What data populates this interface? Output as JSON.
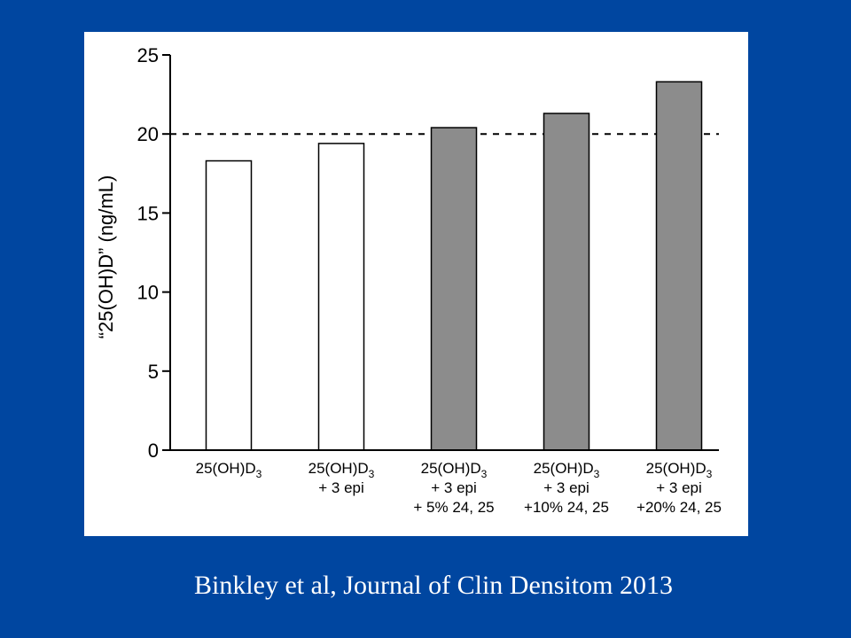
{
  "citation": "Binkley et al, Journal of Clin Densitom 2013",
  "colors": {
    "slide_background": "#0046a0",
    "panel_background": "#ffffff",
    "bar_open_fill": "#ffffff",
    "bar_filled_fill": "#8c8c8c",
    "stroke": "#000000",
    "citation_text": "#ffffff"
  },
  "chart_data": {
    "type": "bar",
    "title": "",
    "ylabel": "“25(OH)D” (ng/mL)",
    "xlabel": "",
    "ylim": [
      0,
      25
    ],
    "yticks": [
      0,
      5,
      10,
      15,
      20,
      25
    ],
    "grid": false,
    "legend": "none",
    "reference_line": {
      "value": 20,
      "style": "dashed"
    },
    "categories": [
      {
        "lines": [
          {
            "base": "25(OH)D",
            "sub": "3"
          }
        ],
        "fill": "open"
      },
      {
        "lines": [
          {
            "base": "25(OH)D",
            "sub": "3"
          },
          {
            "base": "+ 3 epi"
          }
        ],
        "fill": "open"
      },
      {
        "lines": [
          {
            "base": "25(OH)D",
            "sub": "3"
          },
          {
            "base": "+ 3 epi"
          },
          {
            "base": "+ 5% 24, 25"
          }
        ],
        "fill": "filled"
      },
      {
        "lines": [
          {
            "base": "25(OH)D",
            "sub": "3"
          },
          {
            "base": "+ 3 epi"
          },
          {
            "base": "+10% 24, 25"
          }
        ],
        "fill": "filled"
      },
      {
        "lines": [
          {
            "base": "25(OH)D",
            "sub": "3"
          },
          {
            "base": "+ 3 epi"
          },
          {
            "base": "+20% 24, 25"
          }
        ],
        "fill": "filled"
      }
    ],
    "values": [
      18.3,
      19.4,
      20.4,
      21.3,
      23.3
    ]
  }
}
